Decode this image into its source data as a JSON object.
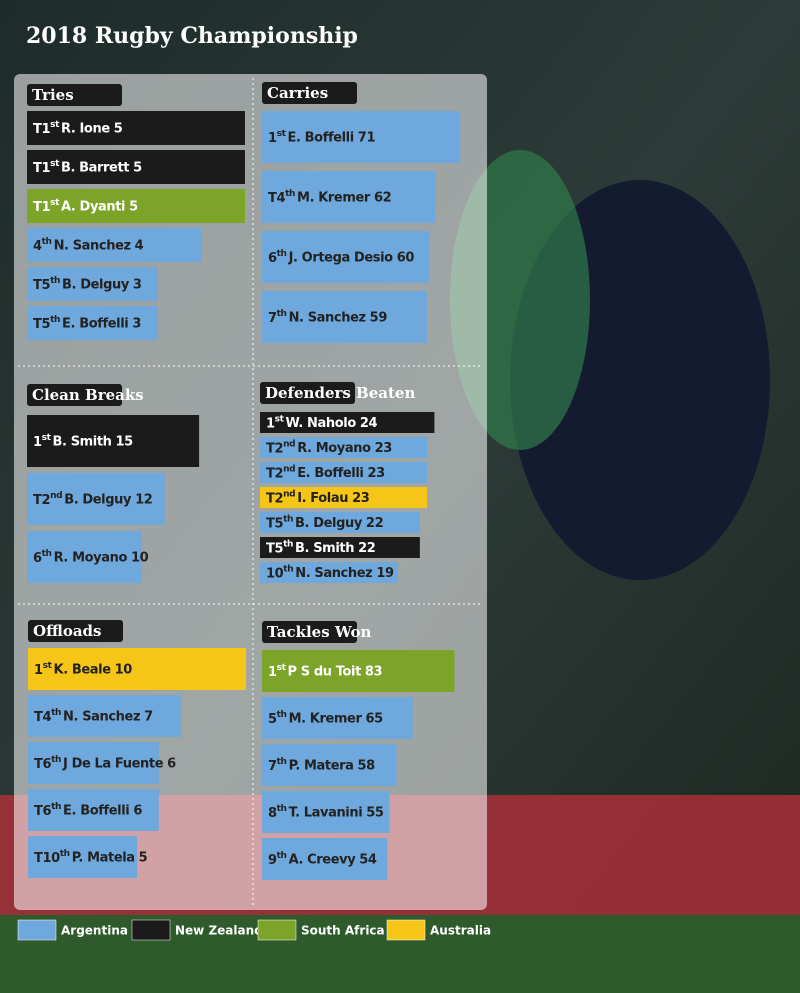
{
  "title": "2018 Rugby Championship",
  "legend": [
    {
      "name": "Argentina",
      "color": "#6fa8dc"
    },
    {
      "name": "New Zealand",
      "color": "#1b1b1b"
    },
    {
      "name": "South Africa",
      "color": "#7ba428"
    },
    {
      "name": "Australia",
      "color": "#f5c518"
    }
  ],
  "chart_data": [
    {
      "type": "bar",
      "title": "Tries",
      "ranks": [
        "T1st",
        "T1st",
        "T1st",
        "4th",
        "T5th",
        "T5th"
      ],
      "categories": [
        "R. Ione",
        "B. Barrett",
        "A. Dyanti",
        "N. Sanchez",
        "B. Delguy",
        "E. Boffelli"
      ],
      "values": [
        5,
        5,
        5,
        4,
        3,
        3
      ],
      "colors": [
        "#1b1b1b",
        "#1b1b1b",
        "#7ba428",
        "#6fa8dc",
        "#6fa8dc",
        "#6fa8dc"
      ],
      "xlim": [
        0,
        5
      ]
    },
    {
      "type": "bar",
      "title": "Carries",
      "ranks": [
        "1st",
        "T4th",
        "6th",
        "7th"
      ],
      "categories": [
        "E. Boffelli",
        "M. Kremer",
        "J. Ortega Desio",
        "N. Sanchez"
      ],
      "values": [
        71,
        62,
        60,
        59
      ],
      "colors": [
        "#6fa8dc",
        "#6fa8dc",
        "#6fa8dc",
        "#6fa8dc"
      ],
      "xlim": [
        0,
        78
      ]
    },
    {
      "type": "bar",
      "title": "Clean Breaks",
      "ranks": [
        "1st",
        "T2nd",
        "6th"
      ],
      "categories": [
        "B. Smith",
        "B. Delguy",
        "R. Moyano"
      ],
      "values": [
        15,
        12,
        10
      ],
      "colors": [
        "#1b1b1b",
        "#6fa8dc",
        "#6fa8dc"
      ],
      "xlim": [
        0,
        19
      ]
    },
    {
      "type": "bar",
      "title": "Defenders Beaten",
      "ranks": [
        "1st",
        "T2nd",
        "T2nd",
        "T2nd",
        "T5th",
        "T5th",
        "10th"
      ],
      "categories": [
        "W. Naholo",
        "R. Moyano",
        "E. Boffelli",
        "I. Folau",
        "B. Delguy",
        "B. Smith",
        "N. Sanchez"
      ],
      "values": [
        24,
        23,
        23,
        23,
        22,
        22,
        19
      ],
      "colors": [
        "#1b1b1b",
        "#6fa8dc",
        "#6fa8dc",
        "#f5c518",
        "#6fa8dc",
        "#1b1b1b",
        "#6fa8dc"
      ],
      "xlim": [
        0,
        30
      ]
    },
    {
      "type": "bar",
      "title": "Offloads",
      "ranks": [
        "1st",
        "T4th",
        "T6th",
        "T6th",
        "T10th"
      ],
      "categories": [
        "K. Beale",
        "N. Sanchez",
        "J De La Fuente",
        "E. Boffelli",
        "P. Matela"
      ],
      "values": [
        10,
        7,
        6,
        6,
        5
      ],
      "colors": [
        "#f5c518",
        "#6fa8dc",
        "#6fa8dc",
        "#6fa8dc",
        "#6fa8dc"
      ],
      "xlim": [
        0,
        10
      ]
    },
    {
      "type": "bar",
      "title": "Tackles Won",
      "ranks": [
        "1st",
        "5th",
        "7th",
        "8th",
        "9th"
      ],
      "categories": [
        "P S du Toit",
        "M. Kremer",
        "P. Matera",
        "T. Lavanini",
        "A. Creevy"
      ],
      "values": [
        83,
        65,
        58,
        55,
        54
      ],
      "colors": [
        "#7ba428",
        "#6fa8dc",
        "#6fa8dc",
        "#6fa8dc",
        "#6fa8dc"
      ],
      "xlim": [
        0,
        94
      ]
    }
  ]
}
